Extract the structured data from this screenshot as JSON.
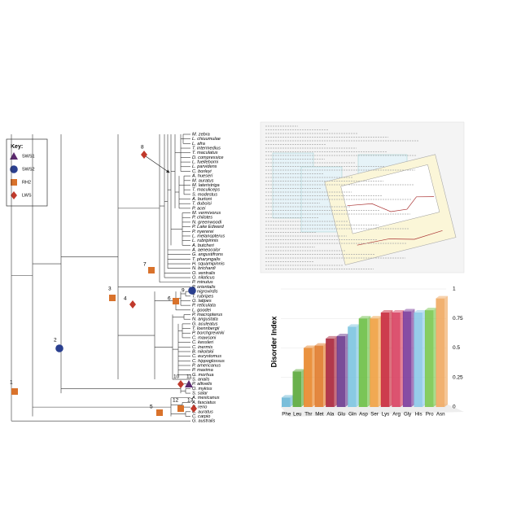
{
  "key": {
    "title": "Key:",
    "items": [
      {
        "label": "SWS1",
        "color": "#5b2a6e",
        "shape": "triangle"
      },
      {
        "label": "SWS2",
        "color": "#2a3f8f",
        "shape": "circle"
      },
      {
        "label": "RH2",
        "color": "#d9722b",
        "shape": "square"
      },
      {
        "label": "LWS",
        "color": "#c0392b",
        "shape": "diamond"
      }
    ]
  },
  "tree": {
    "taxa": [
      "M. zebra",
      "L. chiuumulae",
      "L. afra",
      "T. intermedius",
      "T. maculatus",
      "D. compressice",
      "L. fuelleborni",
      "L. parvidens",
      "C. borleyi",
      "A. hueseri",
      "M. auratus",
      "M. lateristriga",
      "T. maculiceps",
      "S. modestus",
      "A. burtoni",
      "T. duboisi",
      "P. acei",
      "M. vermivorus",
      "P. chilotes",
      "N. greenwoodi",
      "P. Lake Edward",
      "P. nyererei",
      "L. melanopterus",
      "L. rubripinnis",
      "A. butcheri",
      "A. aeneocolor",
      "G. angustifrons",
      "T. pharyngalis",
      "H. squamipinnis",
      "N. brichardi",
      "O. ventralis",
      "O. niloticus",
      "P. minutus",
      "P. orientalis",
      "T. nigrovirdis",
      "T. rubripes",
      "O. latipes",
      "P. reticulata",
      "L. goodei",
      "P. macropterus",
      "N. angustata",
      "G. aculeatus",
      "T. loennbergii",
      "P. borchgrevinki",
      "C. mawsoni",
      "C. kessleri",
      "C. inermis",
      "B. nikolskii",
      "C. eurystomus",
      "C. hippoglossus",
      "P. americanus",
      "P. maxima",
      "G. morhua",
      "S. analis",
      "P. altivelis",
      "O. mykiss",
      "S. salar",
      "A. mexicanus",
      "A. fasciatus",
      "D. rerio",
      "C. auratus",
      "C. carpio",
      "G. australis"
    ],
    "nodes": [
      {
        "label": "1",
        "shape": "square"
      },
      {
        "label": "2",
        "shape": "circle"
      },
      {
        "label": "3",
        "shape": "square"
      },
      {
        "label": "4",
        "shape": "diamond"
      },
      {
        "label": "5",
        "shape": "square"
      },
      {
        "label": "6",
        "shape": "square"
      },
      {
        "label": "7",
        "shape": "square"
      },
      {
        "label": "8",
        "shape": "diamond"
      },
      {
        "label": "9",
        "shape": "circle"
      },
      {
        "label": "10",
        "shape": "diamond"
      },
      {
        "label": "11",
        "shape": "triangle"
      },
      {
        "label": "12",
        "shape": "square"
      },
      {
        "label": "13",
        "shape": "diamond"
      }
    ]
  },
  "bar_chart": {
    "type": "bar",
    "ylabel": "Disorder Index",
    "categories": [
      "Phe",
      "Leu",
      "Thr",
      "Met",
      "Ala",
      "Glu",
      "Gln",
      "Asp",
      "Ser",
      "Lys",
      "Arg",
      "Gly",
      "His",
      "Pro",
      "Asn"
    ],
    "values": [
      0.08,
      0.3,
      0.5,
      0.52,
      0.58,
      0.6,
      0.68,
      0.75,
      0.75,
      0.8,
      0.8,
      0.81,
      0.8,
      0.82,
      0.92
    ],
    "colors": [
      "#6bb7d6",
      "#5aa83a",
      "#e8862a",
      "#e07a2a",
      "#a8243a",
      "#6a3a8e",
      "#7cc4e0",
      "#6cbf45",
      "#f0a040",
      "#c8283a",
      "#d84060",
      "#7a3a9a",
      "#8cc8e8",
      "#7ac850",
      "#f0a860"
    ],
    "ylim": [
      0,
      1
    ],
    "yticks": [
      0,
      0.25,
      0.5,
      0.75,
      1
    ]
  }
}
